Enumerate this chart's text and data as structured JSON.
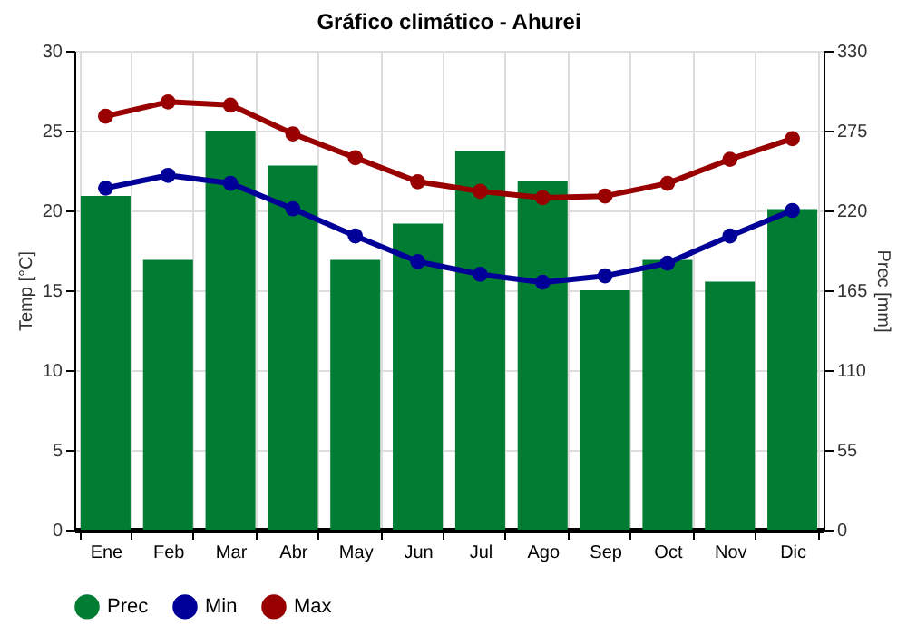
{
  "chart_data": {
    "type": "bar",
    "title": "Gráfico climático - Ahurei",
    "ylabel": "Temp [°C]",
    "y2label": "Prec [mm]",
    "categories": [
      "Ene",
      "Feb",
      "Mar",
      "Abr",
      "May",
      "Jun",
      "Jul",
      "Ago",
      "Sep",
      "Oct",
      "Nov",
      "Dic"
    ],
    "series": [
      {
        "name": "Prec",
        "axis": "y2",
        "color": "#007d32",
        "values": [
          230,
          186,
          275,
          251,
          186,
          211,
          261,
          240,
          165,
          186,
          171,
          221
        ]
      },
      {
        "name": "Min",
        "type": "line",
        "color": "#000099",
        "values": [
          21.4,
          22.2,
          21.7,
          20.1,
          18.4,
          16.8,
          16.0,
          15.5,
          15.9,
          16.7,
          18.4,
          20.0
        ]
      },
      {
        "name": "Max",
        "type": "line",
        "color": "#990000",
        "values": [
          25.9,
          26.8,
          26.6,
          24.8,
          23.3,
          21.8,
          21.2,
          20.8,
          20.9,
          21.7,
          23.2,
          24.5
        ]
      }
    ],
    "ylim": [
      0,
      30
    ],
    "yticks": [
      0,
      5,
      10,
      15,
      20,
      25,
      30
    ],
    "y2lim": [
      0,
      330
    ],
    "y2ticks": [
      0,
      55,
      110,
      165,
      220,
      275,
      330
    ],
    "grid": true,
    "legend": "bottom",
    "marker": "circle",
    "line_style": "solid"
  }
}
